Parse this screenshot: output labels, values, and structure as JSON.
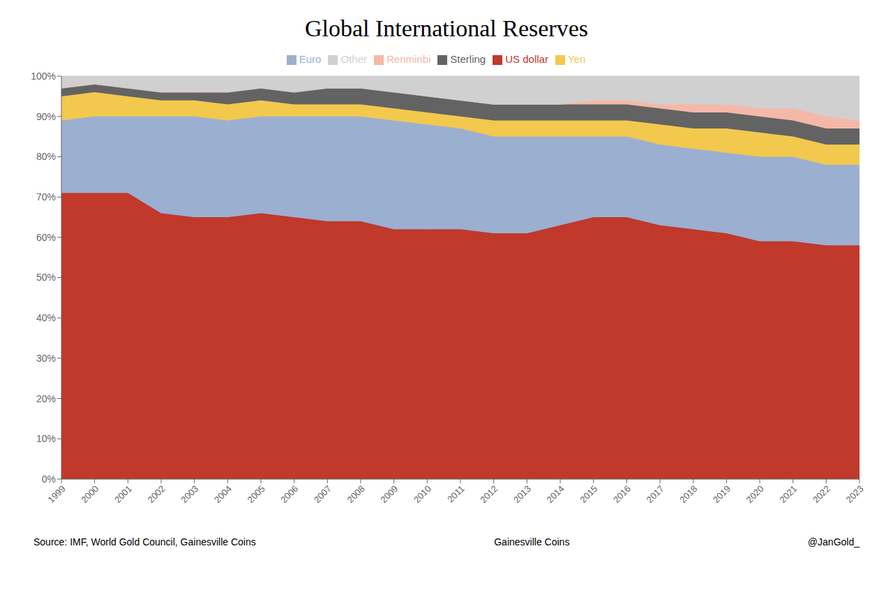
{
  "chart_data": {
    "type": "area",
    "stacked": true,
    "title": "Global International Reserves",
    "x": [
      1999,
      2000,
      2001,
      2002,
      2003,
      2004,
      2005,
      2006,
      2007,
      2008,
      2009,
      2010,
      2011,
      2012,
      2013,
      2014,
      2015,
      2016,
      2017,
      2018,
      2019,
      2020,
      2021,
      2022,
      2023
    ],
    "series": [
      {
        "name": "US dollar",
        "color": "#c0392b",
        "values": [
          71,
          71,
          71,
          66,
          65,
          65,
          66,
          65,
          64,
          64,
          62,
          62,
          62,
          61,
          61,
          63,
          65,
          65,
          63,
          62,
          61,
          59,
          59,
          58,
          58
        ]
      },
      {
        "name": "Euro",
        "color": "#9bafd1",
        "values": [
          18,
          19,
          19,
          24,
          25,
          24,
          24,
          25,
          26,
          26,
          27,
          26,
          25,
          24,
          24,
          22,
          20,
          20,
          20,
          20,
          20,
          21,
          21,
          20,
          20
        ]
      },
      {
        "name": "Yen",
        "color": "#f2c94c",
        "values": [
          6,
          6,
          5,
          4,
          4,
          4,
          4,
          3,
          3,
          3,
          3,
          3,
          3,
          4,
          4,
          4,
          4,
          4,
          5,
          5,
          6,
          6,
          5,
          5,
          5
        ]
      },
      {
        "name": "Sterling",
        "color": "#636363",
        "values": [
          2,
          2,
          2,
          2,
          2,
          3,
          3,
          3,
          4,
          4,
          4,
          4,
          4,
          4,
          4,
          4,
          4,
          4,
          4,
          4,
          4,
          4,
          4,
          4,
          4
        ]
      },
      {
        "name": "Renminbi",
        "color": "#f4b8a8",
        "values": [
          0,
          0,
          0,
          0,
          0,
          0,
          0,
          0,
          0,
          0,
          0,
          0,
          0,
          0,
          0,
          0,
          1,
          1,
          1,
          2,
          2,
          2,
          3,
          3,
          2
        ]
      },
      {
        "name": "Other",
        "color": "#d0d0d0",
        "values": [
          3,
          2,
          3,
          4,
          4,
          4,
          3,
          4,
          3,
          3,
          4,
          5,
          6,
          7,
          7,
          7,
          6,
          6,
          7,
          7,
          7,
          8,
          8,
          10,
          11
        ]
      }
    ],
    "xlim": [
      1999,
      2023
    ],
    "xticks": [
      1999,
      2000,
      2001,
      2002,
      2003,
      2004,
      2005,
      2006,
      2007,
      2008,
      2009,
      2010,
      2011,
      2012,
      2013,
      2014,
      2015,
      2016,
      2017,
      2018,
      2019,
      2020,
      2021,
      2022,
      2023
    ],
    "ylim": [
      0,
      100
    ],
    "yticks": [
      {
        "value": 0,
        "label": "0%"
      },
      {
        "value": 10,
        "label": "10%"
      },
      {
        "value": 20,
        "label": "20%"
      },
      {
        "value": 30,
        "label": "30%"
      },
      {
        "value": 40,
        "label": "40%"
      },
      {
        "value": 50,
        "label": "50%"
      },
      {
        "value": 60,
        "label": "60%"
      },
      {
        "value": 70,
        "label": "70%"
      },
      {
        "value": 80,
        "label": "80%"
      },
      {
        "value": 90,
        "label": "90%"
      },
      {
        "value": 100,
        "label": "100%"
      }
    ],
    "grid": "y",
    "legend": "top",
    "annotations": [
      "Source: IMF, World Gold Council, Gainesville Coins",
      "Gainesville Coins",
      "@JanGold_"
    ]
  }
}
